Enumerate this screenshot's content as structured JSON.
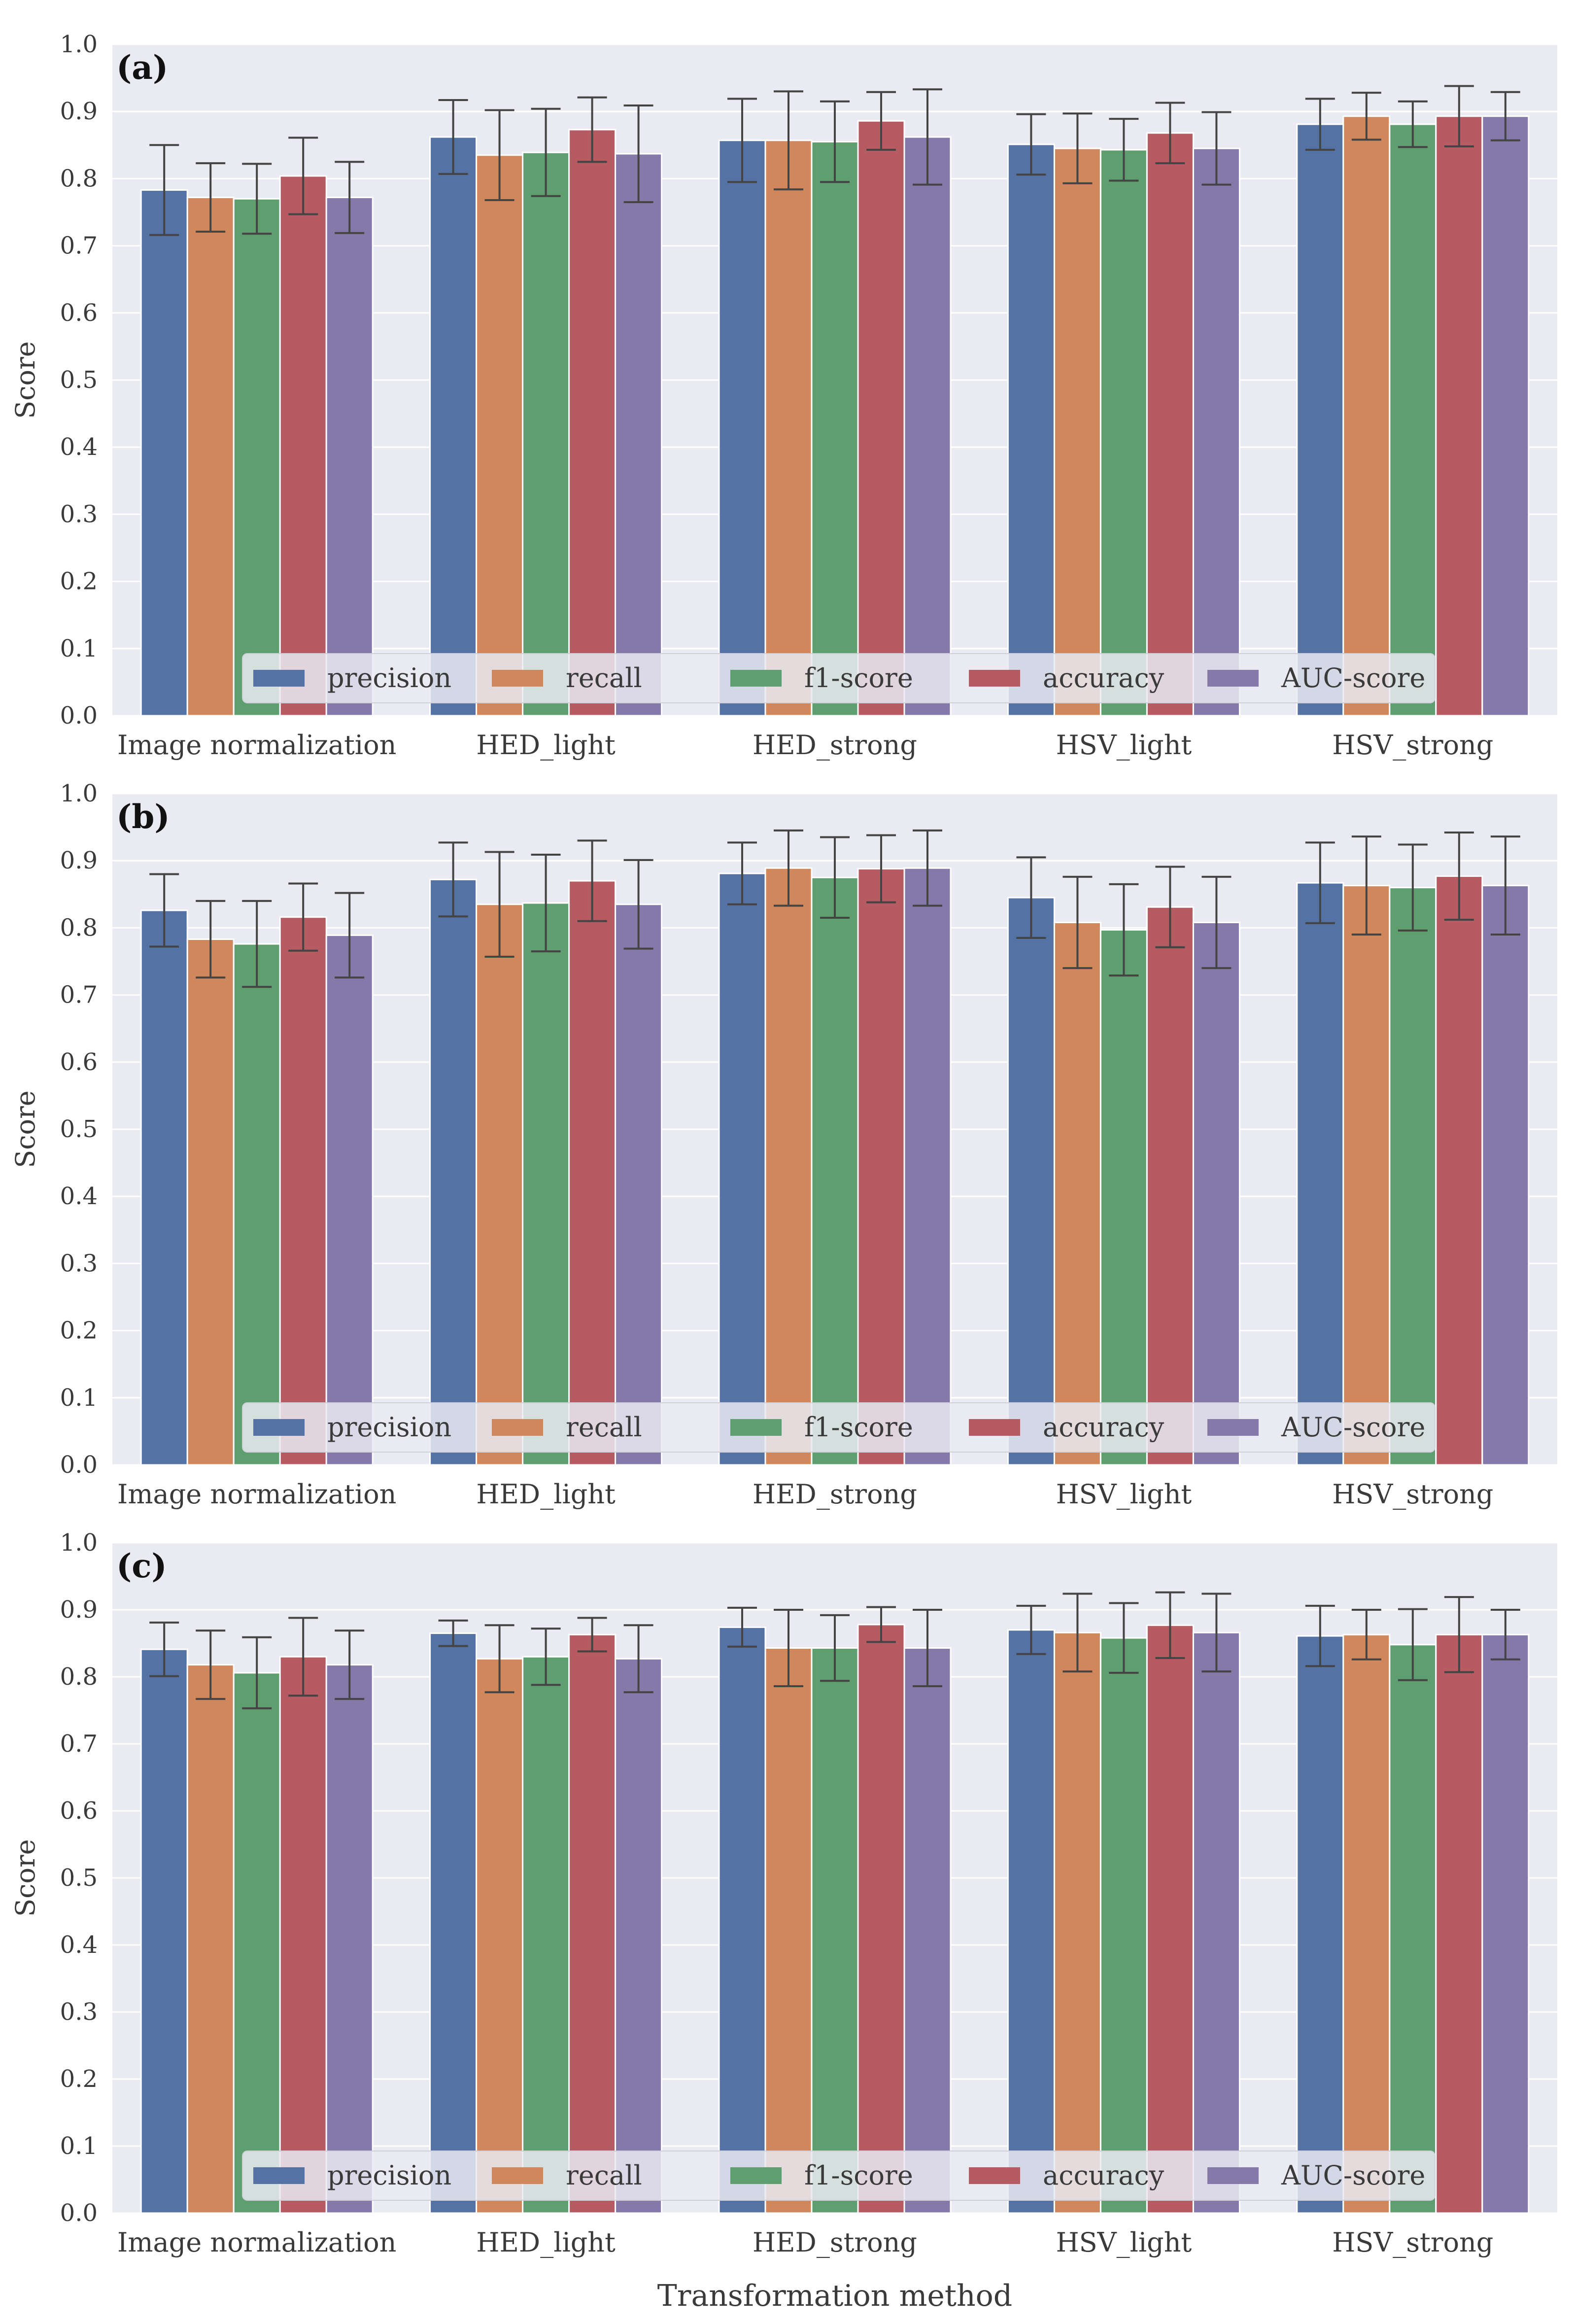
{
  "chart_data": {
    "type": "bar",
    "xlabel": "Transformation method",
    "ylabel": "Score",
    "ylim": [
      0,
      1.0
    ],
    "yticks": [
      "0.0",
      "0.1",
      "0.2",
      "0.3",
      "0.4",
      "0.5",
      "0.6",
      "0.7",
      "0.8",
      "0.9",
      "1.0"
    ],
    "grid": true,
    "legend_position": "bottom-center",
    "categories": [
      "Image normalization",
      "HED_light",
      "HED_strong",
      "HSV_light",
      "HSV_strong"
    ],
    "series_names": [
      "precision",
      "recall",
      "f1-score",
      "accuracy",
      "AUC-score"
    ],
    "series_colors": [
      "#5572a4",
      "#d1875c",
      "#5f9e6e",
      "#b55b61",
      "#8579aa"
    ],
    "background_color": "#eaeaf2",
    "panels": [
      {
        "label": "(a)",
        "series": [
          {
            "name": "precision",
            "values": [
              0.783,
              0.862,
              0.857,
              0.851,
              0.881
            ],
            "errors": [
              0.067,
              0.055,
              0.062,
              0.045,
              0.038
            ]
          },
          {
            "name": "recall",
            "values": [
              0.772,
              0.835,
              0.857,
              0.845,
              0.893
            ],
            "errors": [
              0.051,
              0.067,
              0.073,
              0.052,
              0.035
            ]
          },
          {
            "name": "f1-score",
            "values": [
              0.77,
              0.839,
              0.855,
              0.843,
              0.881
            ],
            "errors": [
              0.052,
              0.065,
              0.06,
              0.046,
              0.034
            ]
          },
          {
            "name": "accuracy",
            "values": [
              0.804,
              0.873,
              0.886,
              0.868,
              0.893
            ],
            "errors": [
              0.057,
              0.048,
              0.043,
              0.045,
              0.045
            ]
          },
          {
            "name": "AUC-score",
            "values": [
              0.772,
              0.837,
              0.862,
              0.845,
              0.893
            ],
            "errors": [
              0.053,
              0.072,
              0.071,
              0.054,
              0.036
            ]
          }
        ]
      },
      {
        "label": "(b)",
        "series": [
          {
            "name": "precision",
            "values": [
              0.826,
              0.872,
              0.881,
              0.845,
              0.867
            ],
            "errors": [
              0.054,
              0.055,
              0.046,
              0.06,
              0.06
            ]
          },
          {
            "name": "recall",
            "values": [
              0.783,
              0.835,
              0.889,
              0.808,
              0.863
            ],
            "errors": [
              0.057,
              0.078,
              0.056,
              0.068,
              0.073
            ]
          },
          {
            "name": "f1-score",
            "values": [
              0.776,
              0.837,
              0.875,
              0.797,
              0.86
            ],
            "errors": [
              0.064,
              0.072,
              0.06,
              0.068,
              0.064
            ]
          },
          {
            "name": "accuracy",
            "values": [
              0.816,
              0.87,
              0.888,
              0.831,
              0.877
            ],
            "errors": [
              0.05,
              0.06,
              0.05,
              0.06,
              0.065
            ]
          },
          {
            "name": "AUC-score",
            "values": [
              0.789,
              0.835,
              0.889,
              0.808,
              0.863
            ],
            "errors": [
              0.063,
              0.066,
              0.056,
              0.068,
              0.073
            ]
          }
        ]
      },
      {
        "label": "(c)",
        "series": [
          {
            "name": "precision",
            "values": [
              0.841,
              0.865,
              0.874,
              0.87,
              0.861
            ],
            "errors": [
              0.04,
              0.019,
              0.029,
              0.036,
              0.045
            ]
          },
          {
            "name": "recall",
            "values": [
              0.818,
              0.827,
              0.843,
              0.866,
              0.863
            ],
            "errors": [
              0.051,
              0.05,
              0.057,
              0.058,
              0.037
            ]
          },
          {
            "name": "f1-score",
            "values": [
              0.806,
              0.83,
              0.843,
              0.858,
              0.848
            ],
            "errors": [
              0.053,
              0.042,
              0.049,
              0.052,
              0.053
            ]
          },
          {
            "name": "accuracy",
            "values": [
              0.83,
              0.863,
              0.878,
              0.877,
              0.863
            ],
            "errors": [
              0.058,
              0.025,
              0.026,
              0.049,
              0.056
            ]
          },
          {
            "name": "AUC-score",
            "values": [
              0.818,
              0.827,
              0.843,
              0.866,
              0.863
            ],
            "errors": [
              0.051,
              0.05,
              0.057,
              0.058,
              0.037
            ]
          }
        ]
      }
    ]
  }
}
